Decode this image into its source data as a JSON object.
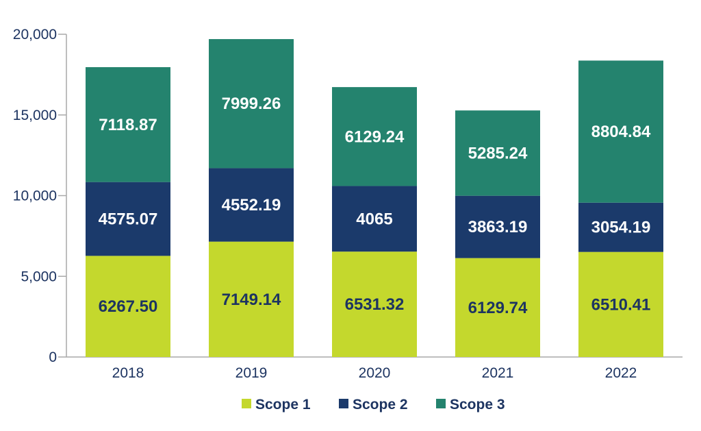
{
  "chart_data": {
    "type": "bar",
    "stacked": true,
    "categories": [
      "2018",
      "2019",
      "2020",
      "2021",
      "2022"
    ],
    "series": [
      {
        "name": "Scope 1",
        "color": "#c4d82d",
        "label_color": "#1d3461",
        "values": [
          6267.5,
          7149.14,
          6531.32,
          6129.74,
          6510.41
        ],
        "labels": [
          "6267.50",
          "7149.14",
          "6531.32",
          "6129.74",
          "6510.41"
        ]
      },
      {
        "name": "Scope 2",
        "color": "#1b3a6b",
        "label_color": "#ffffff",
        "values": [
          4575.07,
          4552.19,
          4065,
          3863.19,
          3054.19
        ],
        "labels": [
          "4575.07",
          "4552.19",
          "4065",
          "3863.19",
          "3054.19"
        ]
      },
      {
        "name": "Scope 3",
        "color": "#24836e",
        "label_color": "#ffffff",
        "values": [
          7118.87,
          7999.26,
          6129.24,
          5285.24,
          8804.84
        ],
        "labels": [
          "7118.87",
          "7999.26",
          "6129.24",
          "5285.24",
          "8804.84"
        ]
      }
    ],
    "y_ticks": [
      0,
      5000,
      10000,
      15000,
      20000
    ],
    "y_tick_labels": [
      "0",
      "5,000",
      "10,000",
      "15,000",
      "20,000"
    ],
    "ylim": [
      0,
      20000
    ],
    "title": "",
    "xlabel": "",
    "ylabel": "",
    "grid": false,
    "legend_position": "bottom-center"
  }
}
